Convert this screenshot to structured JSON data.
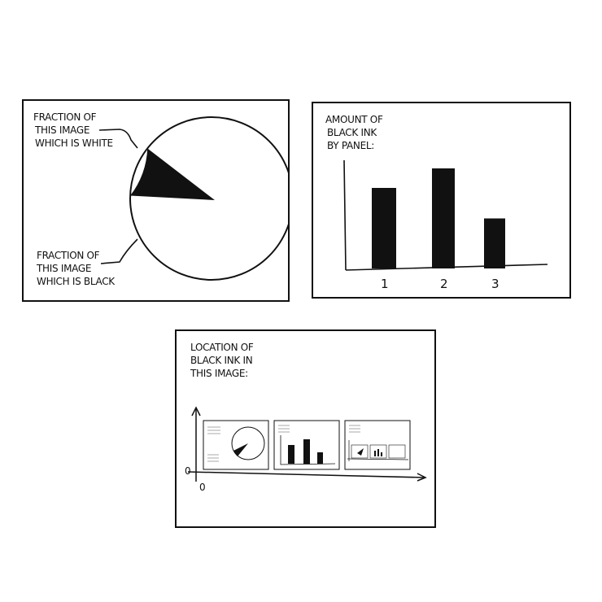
{
  "colors": {
    "ink": "#111111",
    "paper": "#ffffff"
  },
  "chart_data": [
    {
      "type": "pie",
      "title": "",
      "slices": [
        {
          "label": "FRACTION OF THIS IMAGE WHICH IS WHITE",
          "label_lines": [
            "FRACTION OF",
            "THIS IMAGE",
            "WHICH IS WHITE"
          ],
          "value": 0.9,
          "color": "#ffffff"
        },
        {
          "label": "FRACTION OF THIS IMAGE WHICH IS BLACK",
          "label_lines": [
            "FRACTION OF",
            "THIS IMAGE",
            "WHICH IS BLACK"
          ],
          "value": 0.1,
          "color": "#111111"
        }
      ]
    },
    {
      "type": "bar",
      "title": "AMOUNT OF BLACK INK BY PANEL:",
      "title_lines": [
        "AMOUNT OF",
        "BLACK INK",
        "BY PANEL:"
      ],
      "categories": [
        "1",
        "2",
        "3"
      ],
      "values": [
        0.66,
        0.82,
        0.41
      ],
      "ylim": [
        0,
        1
      ],
      "grid": false
    },
    {
      "type": "scatter",
      "title": "LOCATION OF BLACK INK IN THIS IMAGE:",
      "title_lines": [
        "LOCATION OF",
        "BLACK INK IN",
        "THIS IMAGE:"
      ],
      "x_origin_label": "0",
      "y_origin_label": "0",
      "note": "plot shows a miniature copy of this image"
    }
  ]
}
